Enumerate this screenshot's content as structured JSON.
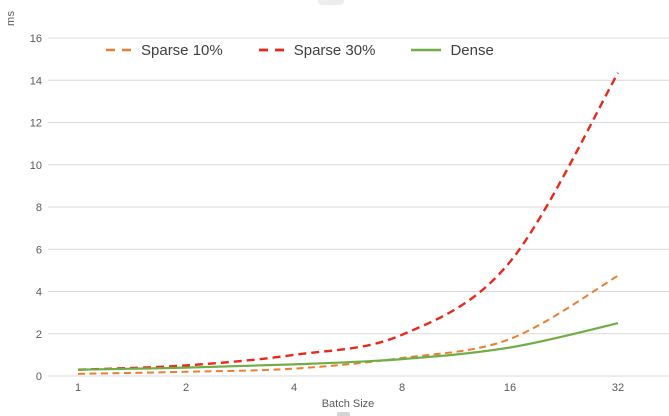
{
  "chart_data": {
    "type": "line",
    "title": "",
    "xlabel": "Batch Size",
    "ylabel": "ms",
    "categories": [
      "1",
      "2",
      "4",
      "8",
      "16",
      "32"
    ],
    "ytick_labels": [
      "0",
      "2",
      "4",
      "6",
      "8",
      "10",
      "12",
      "14",
      "16"
    ],
    "ylim": [
      0,
      16
    ],
    "ytick_step": 2,
    "grid": true,
    "legend_position": "top",
    "series": [
      {
        "name": "Sparse 10%",
        "color": "#ED7D31",
        "style": "dashed",
        "values": [
          0.1,
          0.2,
          0.35,
          0.85,
          1.75,
          4.75
        ]
      },
      {
        "name": "Sparse 30%",
        "color": "#E8281A",
        "style": "dashed",
        "values": [
          0.3,
          0.5,
          1.0,
          1.95,
          5.4,
          14.35
        ]
      },
      {
        "name": "Dense",
        "color": "#70AD47",
        "style": "solid",
        "values": [
          0.3,
          0.4,
          0.55,
          0.8,
          1.35,
          2.5
        ]
      }
    ],
    "colors": {
      "grid": "#D9D9D9",
      "tick_text": "#595959",
      "legend_text": "#404040"
    }
  }
}
